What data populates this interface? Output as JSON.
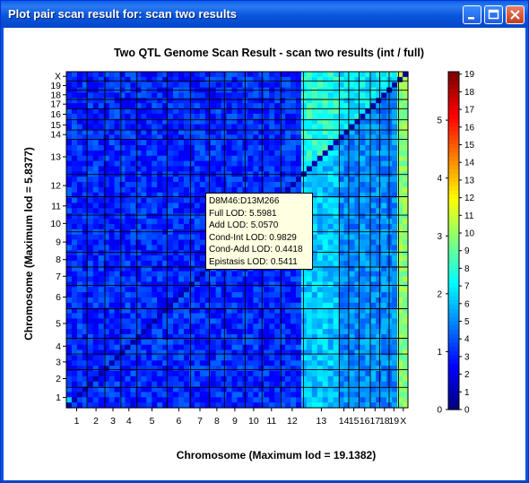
{
  "window": {
    "title": "Plot pair scan result for: scan two results"
  },
  "chart_data": {
    "type": "heatmap",
    "title": "Two QTL Genome Scan Result - scan two results (int / full)",
    "xlabel": "Chromosome (Maximum lod = 19.1382)",
    "ylabel": "Chromosome (Maximum lod = 5.8377)",
    "chromosomes": [
      "1",
      "2",
      "3",
      "4",
      "5",
      "6",
      "7",
      "8",
      "9",
      "10",
      "11",
      "12",
      "13",
      "14",
      "15",
      "16",
      "17",
      "18",
      "19",
      "X"
    ],
    "x_tick_labels": [
      "1",
      "2",
      "3",
      "4",
      "5",
      "6",
      "7",
      "8",
      "9",
      "10",
      "11",
      "12",
      "13",
      "14",
      "15",
      "16",
      "17",
      "18",
      "19",
      "X"
    ],
    "y_tick_labels": [
      "1",
      "2",
      "3",
      "4",
      "5",
      "6",
      "7",
      "8",
      "9",
      "10",
      "11",
      "12",
      "13",
      "14",
      "15",
      "16",
      "17",
      "18",
      "19",
      "X"
    ],
    "colorbar_left": {
      "label_values": [
        "0",
        "1",
        "2",
        "3",
        "4",
        "5"
      ],
      "range": [
        0,
        5.8377
      ]
    },
    "colorbar_right": {
      "label_values": [
        "0",
        "1",
        "2",
        "3",
        "4",
        "5",
        "6",
        "7",
        "8",
        "9",
        "10",
        "11",
        "12",
        "13",
        "14",
        "15",
        "16",
        "17",
        "18",
        "19"
      ],
      "range": [
        0,
        19.1382
      ]
    },
    "max_lod_upper": 19.1382,
    "max_lod_lower": 5.8377
  },
  "tooltip": {
    "lines": [
      "D8M46:D13M266",
      "Full LOD: 5.5981",
      "Add LOD: 5.0570",
      "Cond-Int LOD: 0.9829",
      "Cond-Add LOD: 0.4418",
      "Epistasis LOD: 0.5411"
    ]
  },
  "colors": {
    "title_bar": "#0855DD",
    "tooltip_bg": "#FFFFE1"
  }
}
